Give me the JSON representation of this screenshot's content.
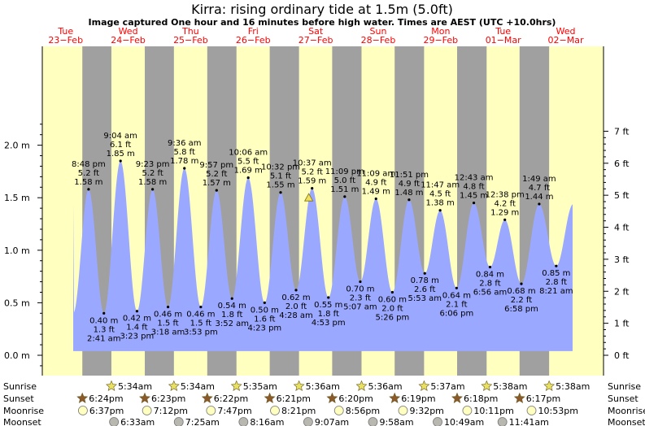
{
  "header": {
    "title": "Kirra: rising  ordinary tide at 1.5m (5.0ft)",
    "subtitle": "Image captured One hour and 16 minutes before high water. Times are AEST (UTC +10.0hrs)"
  },
  "colors": {
    "day": "#ffffc0",
    "night": "#a0a0a0",
    "tide": "#9ba8ff",
    "dayLabel": "#ff0000",
    "sunriseStar": "#e8e060",
    "sunsetStar": "#8b5a2b",
    "moonriseDisc": "#ffffc0",
    "moonsetDisc": "#b8b8b0"
  },
  "chart_data": {
    "type": "area",
    "title": "Kirra: rising  ordinary tide at 1.5m (5.0ft)",
    "ylabel_left_unit": "m",
    "ylabel_right_unit": "ft",
    "ylim_m": [
      -0.1,
      2.2
    ],
    "y_ticks_m": [
      "0.0 m",
      "0.5 m",
      "1.0 m",
      "1.5 m",
      "2.0 m"
    ],
    "y_ticks_ft": [
      "0 ft",
      "1 ft",
      "2 ft",
      "3 ft",
      "4 ft",
      "5 ft",
      "6 ft",
      "7 ft"
    ],
    "days": [
      {
        "dow": "Tue",
        "date": "23−Feb"
      },
      {
        "dow": "Wed",
        "date": "24−Feb"
      },
      {
        "dow": "Thu",
        "date": "25−Feb"
      },
      {
        "dow": "Fri",
        "date": "26−Feb"
      },
      {
        "dow": "Sat",
        "date": "27−Feb"
      },
      {
        "dow": "Sun",
        "date": "28−Feb"
      },
      {
        "dow": "Mon",
        "date": "29−Feb"
      },
      {
        "dow": "Tue",
        "date": "01−Mar"
      },
      {
        "dow": "Wed",
        "date": "02−Mar"
      }
    ],
    "tides": [
      {
        "type": "high",
        "day": 0,
        "time": "8:48 pm",
        "height_m": 1.58,
        "ft": "5.2 ft",
        "m_label": "1.58 m"
      },
      {
        "type": "low",
        "day": 1,
        "time": "2:41 am",
        "height_m": 0.4,
        "ft": "1.3 ft",
        "m_label": "0.40 m"
      },
      {
        "type": "high",
        "day": 1,
        "time": "9:04 am",
        "height_m": 1.85,
        "ft": "6.1 ft",
        "m_label": "1.85 m"
      },
      {
        "type": "low",
        "day": 1,
        "time": "3:23 pm",
        "height_m": 0.42,
        "ft": "1.4 ft",
        "m_label": "0.42 m"
      },
      {
        "type": "high",
        "day": 1,
        "time": "9:23 pm",
        "height_m": 1.58,
        "ft": "5.2 ft",
        "m_label": "1.58 m"
      },
      {
        "type": "low",
        "day": 2,
        "time": "3:18 am",
        "height_m": 0.46,
        "ft": "1.5 ft",
        "m_label": "0.46 m"
      },
      {
        "type": "high",
        "day": 2,
        "time": "9:36 am",
        "height_m": 1.78,
        "ft": "5.8 ft",
        "m_label": "1.78 m"
      },
      {
        "type": "low",
        "day": 2,
        "time": "3:53 pm",
        "height_m": 0.46,
        "ft": "1.5 ft",
        "m_label": "0.46 m"
      },
      {
        "type": "high",
        "day": 2,
        "time": "9:57 pm",
        "height_m": 1.57,
        "ft": "5.2 ft",
        "m_label": "1.57 m"
      },
      {
        "type": "low",
        "day": 3,
        "time": "3:52 am",
        "height_m": 0.54,
        "ft": "1.8 ft",
        "m_label": "0.54 m"
      },
      {
        "type": "high",
        "day": 3,
        "time": "10:06 am",
        "height_m": 1.69,
        "ft": "5.5 ft",
        "m_label": "1.69 m"
      },
      {
        "type": "low",
        "day": 3,
        "time": "4:23 pm",
        "height_m": 0.5,
        "ft": "1.6 ft",
        "m_label": "0.50 m"
      },
      {
        "type": "high",
        "day": 3,
        "time": "10:32 pm",
        "height_m": 1.55,
        "ft": "5.1 ft",
        "m_label": "1.55 m"
      },
      {
        "type": "low",
        "day": 4,
        "time": "4:28 am",
        "height_m": 0.62,
        "ft": "2.0 ft",
        "m_label": "0.62 m"
      },
      {
        "type": "high",
        "day": 4,
        "time": "10:37 am",
        "height_m": 1.59,
        "ft": "5.2 ft",
        "m_label": "1.59 m"
      },
      {
        "type": "low",
        "day": 4,
        "time": "4:53 pm",
        "height_m": 0.55,
        "ft": "1.8 ft",
        "m_label": "0.55 m"
      },
      {
        "type": "high",
        "day": 4,
        "time": "11:09 pm",
        "height_m": 1.51,
        "ft": "5.0 ft",
        "m_label": "1.51 m"
      },
      {
        "type": "low",
        "day": 5,
        "time": "5:07 am",
        "height_m": 0.7,
        "ft": "2.3 ft",
        "m_label": "0.70 m"
      },
      {
        "type": "high",
        "day": 5,
        "time": "11:09 am",
        "height_m": 1.49,
        "ft": "4.9 ft",
        "m_label": "1.49 m"
      },
      {
        "type": "low",
        "day": 5,
        "time": "5:26 pm",
        "height_m": 0.6,
        "ft": "2.0 ft",
        "m_label": "0.60 m"
      },
      {
        "type": "high",
        "day": 5,
        "time": "11:51 pm",
        "height_m": 1.48,
        "ft": "4.9 ft",
        "m_label": "1.48 m"
      },
      {
        "type": "low",
        "day": 6,
        "time": "5:53 am",
        "height_m": 0.78,
        "ft": "2.6 ft",
        "m_label": "0.78 m"
      },
      {
        "type": "high",
        "day": 6,
        "time": "11:47 am",
        "height_m": 1.38,
        "ft": "4.5 ft",
        "m_label": "1.38 m"
      },
      {
        "type": "low",
        "day": 6,
        "time": "6:06 pm",
        "height_m": 0.64,
        "ft": "2.1 ft",
        "m_label": "0.64 m"
      },
      {
        "type": "high",
        "day": 7,
        "time": "12:43 am",
        "height_m": 1.45,
        "ft": "4.8 ft",
        "m_label": "1.45 m"
      },
      {
        "type": "low",
        "day": 7,
        "time": "6:56 am",
        "height_m": 0.84,
        "ft": "2.8 ft",
        "m_label": "0.84 m"
      },
      {
        "type": "high",
        "day": 7,
        "time": "12:38 pm",
        "height_m": 1.29,
        "ft": "4.2 ft",
        "m_label": "1.29 m"
      },
      {
        "type": "low",
        "day": 7,
        "time": "6:58 pm",
        "height_m": 0.68,
        "ft": "2.2 ft",
        "m_label": "0.68 m"
      },
      {
        "type": "high",
        "day": 8,
        "time": "1:49 am",
        "height_m": 1.44,
        "ft": "4.7 ft",
        "m_label": "1.44 m"
      },
      {
        "type": "low",
        "day": 8,
        "time": "8:21 am",
        "height_m": 0.85,
        "ft": "2.8 ft",
        "m_label": "0.85 m"
      }
    ],
    "current_level_m": 1.5,
    "current_time_label": "Sat 27-Feb ~9:21 am",
    "grid": false
  },
  "ephemeris": {
    "labels": {
      "sunrise": "Sunrise",
      "sunset": "Sunset",
      "moonrise": "Moonrise",
      "moonset": "Moonset"
    },
    "sunrise": [
      {
        "day": 1,
        "time": "5:34am"
      },
      {
        "day": 2,
        "time": "5:34am"
      },
      {
        "day": 3,
        "time": "5:35am"
      },
      {
        "day": 4,
        "time": "5:36am"
      },
      {
        "day": 5,
        "time": "5:36am"
      },
      {
        "day": 6,
        "time": "5:37am"
      },
      {
        "day": 7,
        "time": "5:38am"
      },
      {
        "day": 8,
        "time": "5:38am"
      }
    ],
    "sunset": [
      {
        "day": 0,
        "time": "6:24pm"
      },
      {
        "day": 1,
        "time": "6:23pm"
      },
      {
        "day": 2,
        "time": "6:22pm"
      },
      {
        "day": 3,
        "time": "6:21pm"
      },
      {
        "day": 4,
        "time": "6:20pm"
      },
      {
        "day": 5,
        "time": "6:19pm"
      },
      {
        "day": 6,
        "time": "6:18pm"
      },
      {
        "day": 7,
        "time": "6:17pm"
      }
    ],
    "moonrise": [
      {
        "day": 0,
        "time": "6:37pm"
      },
      {
        "day": 1,
        "time": "7:12pm"
      },
      {
        "day": 2,
        "time": "7:47pm"
      },
      {
        "day": 3,
        "time": "8:21pm"
      },
      {
        "day": 4,
        "time": "8:56pm"
      },
      {
        "day": 5,
        "time": "9:32pm"
      },
      {
        "day": 6,
        "time": "10:11pm"
      },
      {
        "day": 7,
        "time": "10:53pm"
      }
    ],
    "moonset": [
      {
        "day": 1,
        "time": "6:33am"
      },
      {
        "day": 2,
        "time": "7:25am"
      },
      {
        "day": 3,
        "time": "8:16am"
      },
      {
        "day": 4,
        "time": "9:07am"
      },
      {
        "day": 5,
        "time": "9:58am"
      },
      {
        "day": 6,
        "time": "10:49am"
      },
      {
        "day": 7,
        "time": "11:41am"
      }
    ]
  }
}
